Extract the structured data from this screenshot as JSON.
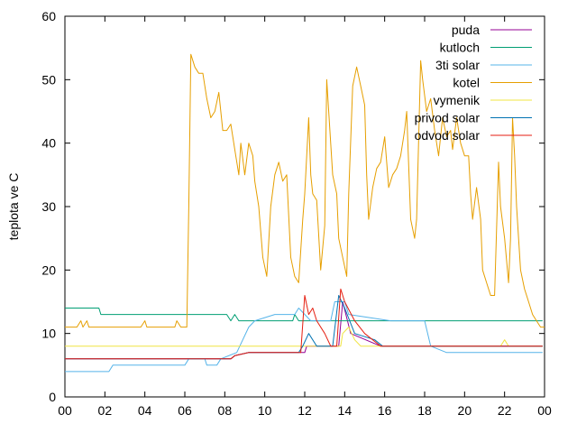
{
  "chart_data": {
    "type": "line",
    "title": "",
    "xlabel": "",
    "ylabel": "teplota ve C",
    "ylim": [
      0,
      60
    ],
    "xlim": [
      0,
      24
    ],
    "x_tick_labels": [
      "00",
      "02",
      "04",
      "06",
      "08",
      "10",
      "12",
      "14",
      "16",
      "18",
      "20",
      "22",
      "00"
    ],
    "y_ticks": [
      0,
      10,
      20,
      30,
      40,
      50,
      60
    ],
    "legend_position": "top-right",
    "grid": false,
    "series": [
      {
        "name": "puda",
        "color": "#940094",
        "points": [
          [
            0,
            6
          ],
          [
            8.3,
            6
          ],
          [
            8.5,
            6.5
          ],
          [
            9.2,
            7
          ],
          [
            12,
            7
          ],
          [
            12.1,
            8
          ],
          [
            13.7,
            8
          ],
          [
            13.9,
            15
          ],
          [
            14.3,
            10
          ],
          [
            15.8,
            8
          ],
          [
            23.9,
            8
          ]
        ]
      },
      {
        "name": "kutloch",
        "color": "#009e73",
        "points": [
          [
            0,
            14
          ],
          [
            1.7,
            14
          ],
          [
            1.8,
            13
          ],
          [
            8.1,
            13
          ],
          [
            8.3,
            12
          ],
          [
            8.5,
            13
          ],
          [
            8.7,
            12
          ],
          [
            9.3,
            12
          ],
          [
            9.6,
            12
          ],
          [
            11.4,
            12
          ],
          [
            11.5,
            13
          ],
          [
            11.7,
            12
          ],
          [
            14,
            12
          ],
          [
            23.9,
            12
          ]
        ]
      },
      {
        "name": "3ti solar",
        "color": "#56b4e9",
        "points": [
          [
            0,
            4
          ],
          [
            2.2,
            4
          ],
          [
            2.4,
            5
          ],
          [
            6,
            5
          ],
          [
            6.2,
            6
          ],
          [
            7,
            6
          ],
          [
            7.1,
            5
          ],
          [
            7.6,
            5
          ],
          [
            7.8,
            6
          ],
          [
            8.6,
            7
          ],
          [
            9.2,
            11
          ],
          [
            9.5,
            12
          ],
          [
            10.5,
            13
          ],
          [
            11.5,
            13
          ],
          [
            11.7,
            14
          ],
          [
            12.3,
            12
          ],
          [
            13.3,
            12
          ],
          [
            13.5,
            15
          ],
          [
            14,
            15
          ],
          [
            14.2,
            13
          ],
          [
            16.3,
            12
          ],
          [
            18,
            12
          ],
          [
            18.3,
            8
          ],
          [
            19.1,
            7
          ],
          [
            23.9,
            7
          ]
        ]
      },
      {
        "name": "kotel",
        "color": "#e69f00",
        "points": [
          [
            0,
            11
          ],
          [
            0.6,
            11
          ],
          [
            0.8,
            12
          ],
          [
            0.9,
            11
          ],
          [
            1.1,
            12
          ],
          [
            1.2,
            11
          ],
          [
            3.8,
            11
          ],
          [
            4,
            12
          ],
          [
            4.1,
            11
          ],
          [
            5.5,
            11
          ],
          [
            5.6,
            12
          ],
          [
            5.8,
            11
          ],
          [
            6.1,
            11
          ],
          [
            6.2,
            30
          ],
          [
            6.3,
            54
          ],
          [
            6.5,
            52
          ],
          [
            6.7,
            51
          ],
          [
            6.9,
            51
          ],
          [
            7.1,
            47
          ],
          [
            7.3,
            44
          ],
          [
            7.5,
            45
          ],
          [
            7.7,
            48
          ],
          [
            7.9,
            42
          ],
          [
            8.1,
            42
          ],
          [
            8.3,
            43
          ],
          [
            8.5,
            39
          ],
          [
            8.7,
            35
          ],
          [
            8.8,
            40
          ],
          [
            9,
            35
          ],
          [
            9.2,
            40
          ],
          [
            9.4,
            38
          ],
          [
            9.5,
            34
          ],
          [
            9.7,
            30
          ],
          [
            9.9,
            22
          ],
          [
            10.1,
            19
          ],
          [
            10.3,
            30
          ],
          [
            10.5,
            35
          ],
          [
            10.7,
            37
          ],
          [
            10.9,
            34
          ],
          [
            11.1,
            35
          ],
          [
            11.3,
            22
          ],
          [
            11.5,
            19
          ],
          [
            11.7,
            18
          ],
          [
            11.9,
            28
          ],
          [
            12,
            32
          ],
          [
            12.2,
            44
          ],
          [
            12.3,
            35
          ],
          [
            12.4,
            32
          ],
          [
            12.6,
            31
          ],
          [
            12.8,
            20
          ],
          [
            13,
            27
          ],
          [
            13.1,
            50
          ],
          [
            13.2,
            45
          ],
          [
            13.4,
            35
          ],
          [
            13.6,
            32
          ],
          [
            13.7,
            25
          ],
          [
            13.9,
            22
          ],
          [
            14.1,
            19
          ],
          [
            14.2,
            32
          ],
          [
            14.4,
            49
          ],
          [
            14.6,
            52
          ],
          [
            14.8,
            49
          ],
          [
            15,
            46
          ],
          [
            15.1,
            35
          ],
          [
            15.2,
            28
          ],
          [
            15.4,
            33
          ],
          [
            15.6,
            36
          ],
          [
            15.8,
            37
          ],
          [
            16,
            41
          ],
          [
            16.2,
            33
          ],
          [
            16.4,
            35
          ],
          [
            16.6,
            36
          ],
          [
            16.8,
            38
          ],
          [
            17,
            42
          ],
          [
            17.1,
            45
          ],
          [
            17.3,
            28
          ],
          [
            17.5,
            25
          ],
          [
            17.6,
            28
          ],
          [
            17.8,
            53
          ],
          [
            17.9,
            50
          ],
          [
            18.1,
            45
          ],
          [
            18.3,
            47
          ],
          [
            18.5,
            42
          ],
          [
            18.7,
            38
          ],
          [
            18.9,
            44
          ],
          [
            19.1,
            41
          ],
          [
            19.3,
            42
          ],
          [
            19.4,
            39
          ],
          [
            19.6,
            44
          ],
          [
            19.8,
            40
          ],
          [
            20,
            38
          ],
          [
            20.2,
            38
          ],
          [
            20.3,
            32
          ],
          [
            20.4,
            28
          ],
          [
            20.6,
            33
          ],
          [
            20.8,
            28
          ],
          [
            20.9,
            20
          ],
          [
            21.1,
            18
          ],
          [
            21.3,
            16
          ],
          [
            21.5,
            16
          ],
          [
            21.7,
            37
          ],
          [
            21.8,
            30
          ],
          [
            22,
            25
          ],
          [
            22.2,
            18
          ],
          [
            22.3,
            25
          ],
          [
            22.4,
            44
          ],
          [
            22.5,
            38
          ],
          [
            22.6,
            30
          ],
          [
            22.8,
            20
          ],
          [
            23,
            17
          ],
          [
            23.2,
            15
          ],
          [
            23.4,
            13
          ],
          [
            23.6,
            12
          ],
          [
            23.8,
            11
          ],
          [
            24,
            11
          ]
        ]
      },
      {
        "name": "vymenik",
        "color": "#f0e442",
        "points": [
          [
            0,
            8
          ],
          [
            13.8,
            8
          ],
          [
            13.9,
            10
          ],
          [
            14.2,
            11
          ],
          [
            14.5,
            9
          ],
          [
            14.8,
            8
          ],
          [
            21.8,
            8
          ],
          [
            22,
            9
          ],
          [
            22.2,
            8
          ],
          [
            23.9,
            8
          ]
        ]
      },
      {
        "name": "privod solar",
        "color": "#0072b2",
        "points": [
          [
            0,
            6
          ],
          [
            8.3,
            6
          ],
          [
            8.5,
            6.5
          ],
          [
            9.2,
            7
          ],
          [
            11.7,
            7
          ],
          [
            11.9,
            8
          ],
          [
            12.2,
            10
          ],
          [
            12.6,
            8
          ],
          [
            13.4,
            8
          ],
          [
            13.7,
            16
          ],
          [
            14,
            14
          ],
          [
            14.5,
            10
          ],
          [
            15.5,
            9
          ],
          [
            15.9,
            8
          ],
          [
            23.9,
            8
          ]
        ]
      },
      {
        "name": "odvod solar",
        "color": "#e51e10",
        "points": [
          [
            0,
            6
          ],
          [
            8.3,
            6
          ],
          [
            8.5,
            6.5
          ],
          [
            9.2,
            7
          ],
          [
            11.8,
            7
          ],
          [
            12,
            16
          ],
          [
            12.2,
            13
          ],
          [
            12.4,
            14
          ],
          [
            12.6,
            12
          ],
          [
            13,
            10
          ],
          [
            13.3,
            8
          ],
          [
            13.6,
            8
          ],
          [
            13.8,
            17
          ],
          [
            14,
            15
          ],
          [
            14.5,
            12
          ],
          [
            15,
            10
          ],
          [
            15.8,
            8
          ],
          [
            23.9,
            8
          ]
        ]
      }
    ]
  }
}
